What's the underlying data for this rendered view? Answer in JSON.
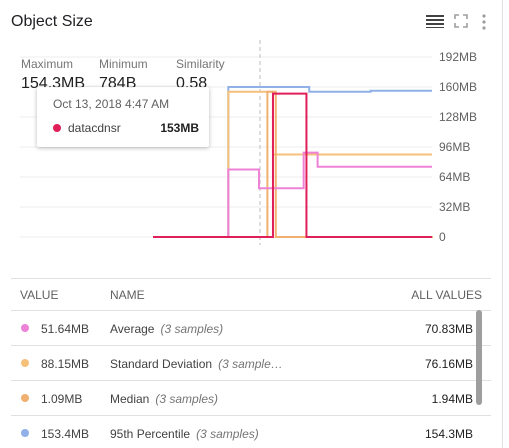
{
  "title": "Object Size",
  "header_icons": [
    "legend-list-icon",
    "fullscreen-icon",
    "more-vert-icon"
  ],
  "stats": [
    {
      "label": "Maximum",
      "value": "154.3MB"
    },
    {
      "label": "Minimum",
      "value": "784B"
    },
    {
      "label": "Similarity",
      "value": "0.58"
    }
  ],
  "tooltip": {
    "time": "Oct 13, 2018 4:47 AM",
    "series": "datacdnsr",
    "value": "153MB",
    "color": "#e01e5a"
  },
  "legend": {
    "headers": {
      "value": "VALUE",
      "name": "NAME",
      "all": "ALL VALUES"
    },
    "rows": [
      {
        "color": "#ee82d6",
        "value": "51.64MB",
        "name": "Average",
        "samples": "(3 samples)",
        "all": "70.83MB"
      },
      {
        "color": "#f5c07a",
        "value": "88.15MB",
        "name": "Standard Deviation",
        "samples": "(3 sample…",
        "all": "76.16MB"
      },
      {
        "color": "#f0b070",
        "value": "1.09MB",
        "name": "Median",
        "samples": "(3 samples)",
        "all": "1.94MB"
      },
      {
        "color": "#8fb1e8",
        "value": "153.4MB",
        "name": "95th Percentile",
        "samples": "(3 samples)",
        "all": "154.3MB"
      }
    ]
  },
  "chart_data": {
    "type": "line",
    "y_unit": "MB",
    "yticks": [
      "192MB",
      "160MB",
      "128MB",
      "96MB",
      "64MB",
      "32MB",
      "0"
    ],
    "ylim": [
      0,
      192
    ],
    "series": [
      {
        "color": "#8fb1e8",
        "points": [
          [
            0,
            0
          ],
          [
            0.26,
            0
          ],
          [
            0.27,
            160
          ],
          [
            0.34,
            160
          ],
          [
            0.35,
            160
          ],
          [
            0.56,
            155
          ],
          [
            0.78,
            156
          ],
          [
            1,
            156
          ]
        ]
      },
      {
        "color": "#f5c07a",
        "points": [
          [
            0,
            0
          ],
          [
            0.26,
            0
          ],
          [
            0.27,
            155
          ],
          [
            0.42,
            155
          ],
          [
            0.43,
            88
          ],
          [
            0.56,
            88
          ],
          [
            0.57,
            88
          ],
          [
            1,
            88
          ]
        ]
      },
      {
        "color": "#f0b070",
        "points": [
          [
            0,
            0
          ],
          [
            0.4,
            0
          ],
          [
            0.41,
            155
          ],
          [
            0.43,
            155
          ],
          [
            0.44,
            0
          ],
          [
            0.56,
            0
          ],
          [
            1,
            1
          ]
        ]
      },
      {
        "color": "#ee82d6",
        "points": [
          [
            0,
            0
          ],
          [
            0.26,
            0
          ],
          [
            0.27,
            72
          ],
          [
            0.37,
            72
          ],
          [
            0.38,
            52
          ],
          [
            0.53,
            52
          ],
          [
            0.54,
            90
          ],
          [
            0.58,
            90
          ],
          [
            0.59,
            75
          ],
          [
            1,
            75
          ]
        ]
      },
      {
        "color": "#e01e5a",
        "points": [
          [
            0,
            0
          ],
          [
            0.26,
            0
          ],
          [
            0.42,
            0
          ],
          [
            0.43,
            153
          ],
          [
            0.53,
            153
          ],
          [
            0.54,
            153
          ],
          [
            0.55,
            0
          ],
          [
            1,
            0
          ]
        ]
      }
    ]
  }
}
